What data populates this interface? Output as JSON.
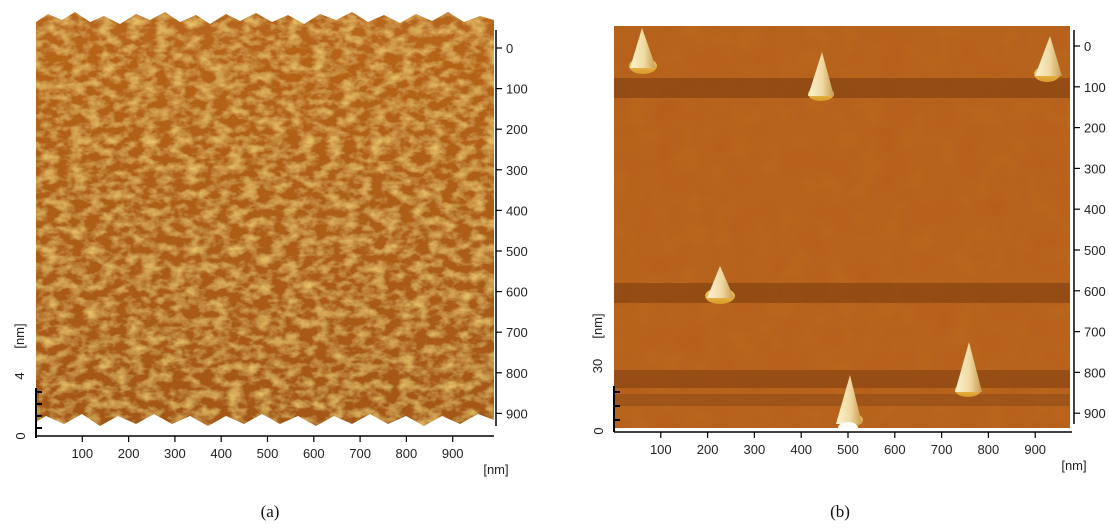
{
  "figure": {
    "panels": [
      {
        "caption": "(a)",
        "y_tick_labels": [
          "0",
          "100",
          "200",
          "300",
          "400",
          "500",
          "600",
          "700",
          "800",
          "900"
        ],
        "x_tick_labels": [
          "100",
          "200",
          "300",
          "400",
          "500",
          "600",
          "700",
          "800",
          "900"
        ],
        "x_unit": "[nm]",
        "z_unit": "[nm]",
        "z_tick_labels": [
          "0",
          "4"
        ],
        "surface": "dense-rough-peaks",
        "colors": {
          "dark": "#7a3e0a",
          "mid": "#c97a1a",
          "light": "#f1c24a"
        }
      },
      {
        "caption": "(b)",
        "y_tick_labels": [
          "0",
          "100",
          "200",
          "300",
          "400",
          "500",
          "600",
          "700",
          "800",
          "900"
        ],
        "x_tick_labels": [
          "100",
          "200",
          "300",
          "400",
          "500",
          "600",
          "700",
          "800",
          "900"
        ],
        "x_unit": "[nm]",
        "z_unit": "[nm]",
        "z_tick_labels": [
          "0",
          "30"
        ],
        "surface": "flat-with-isolated-peaks",
        "colors": {
          "bg": "#b8651f",
          "band": "#8a4712",
          "peak": "#f3e7b6"
        }
      }
    ]
  }
}
